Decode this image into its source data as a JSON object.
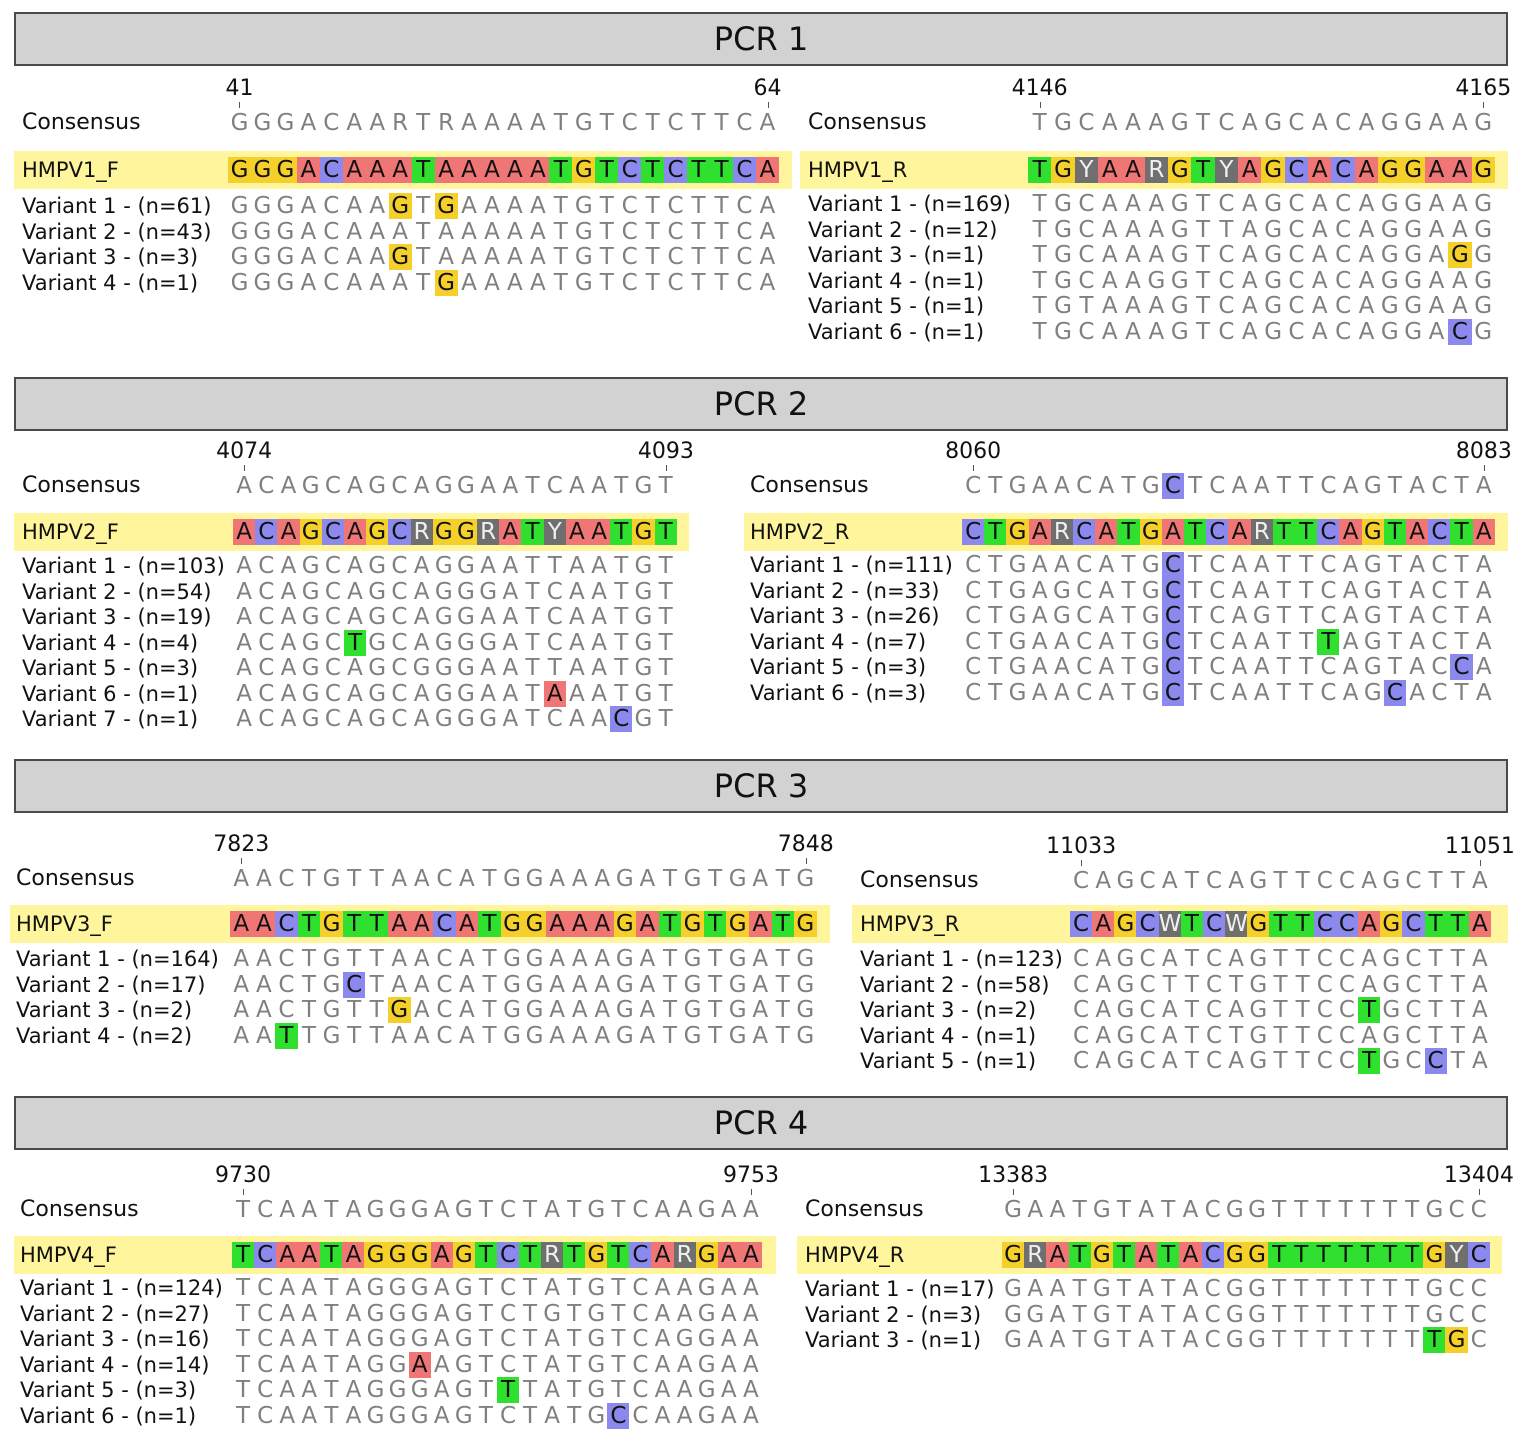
{
  "colors": {
    "A": "#f07575",
    "C": "#8b88ee",
    "G": "#f6d02a",
    "T": "#2fe02f",
    "ambiguous": "#6f6f6f",
    "primer_band": "#fff59d",
    "header_bg": "#d2d2d2"
  },
  "pcrs": [
    {
      "title": "PCR 1",
      "blocks": [
        {
          "start": "41",
          "end": "64",
          "consensus_label": "Consensus",
          "consensus": "GGGACAARTRAAAATGTCTCTTCA",
          "consensus_hl": [],
          "primer_name": "HMPV1_F",
          "primer": "GGGACAAATAAAAATGTCTCTTCA",
          "variants": [
            {
              "label": "Variant 1 - (n=61)",
              "seq": "GGGACAAGTGAAAATGTCTCTTCA",
              "hl": [
                7,
                9
              ]
            },
            {
              "label": "Variant 2 - (n=43)",
              "seq": "GGGACAAATAAAAATGTCTCTTCA",
              "hl": []
            },
            {
              "label": "Variant 3 - (n=3)",
              "seq": "GGGACAAGTAAAAATGTCTCTTCA",
              "hl": [
                7
              ]
            },
            {
              "label": "Variant 4 - (n=1)",
              "seq": "GGGACAAATGAAAATGTCTCTTCA",
              "hl": [
                9
              ]
            }
          ]
        },
        {
          "start": "4146",
          "end": "4165",
          "consensus_label": "Consensus",
          "consensus": "TGCAAAGTCAGCACAGGAAG",
          "consensus_hl": [],
          "primer_name": "HMPV1_R",
          "primer": "TGYAARGTYAGCACAGGAAG",
          "variants": [
            {
              "label": "Variant 1 - (n=169)",
              "seq": "TGCAAAGTCAGCACAGGAAG",
              "hl": []
            },
            {
              "label": "Variant 2 - (n=12)",
              "seq": "TGCAAAGTTAGCACAGGAAG",
              "hl": []
            },
            {
              "label": "Variant 3 - (n=1)",
              "seq": "TGCAAAGTCAGCACAGGAGG",
              "hl": [
                18
              ]
            },
            {
              "label": "Variant 4 - (n=1)",
              "seq": "TGCAAGGTCAGCACAGGAAG",
              "hl": []
            },
            {
              "label": "Variant 5 - (n=1)",
              "seq": "TGTAAAGTCAGCACAGGAAG",
              "hl": []
            },
            {
              "label": "Variant 6 - (n=1)",
              "seq": "TGCAAAGTCAGCACAGGACG",
              "hl": [
                18
              ]
            }
          ]
        }
      ]
    },
    {
      "title": "PCR 2",
      "blocks": [
        {
          "start": "4074",
          "end": "4093",
          "consensus_label": "Consensus",
          "consensus": "ACAGCAGCAGGAATCAATGT",
          "consensus_hl": [],
          "primer_name": "HMPV2_F",
          "primer": "ACAGCAGCRGGRATYAATGT",
          "variants": [
            {
              "label": "Variant 1 - (n=103)",
              "seq": "ACAGCAGCAGGAATTAATGT",
              "hl": []
            },
            {
              "label": "Variant 2 - (n=54)",
              "seq": "ACAGCAGCAGGGATCAATGT",
              "hl": []
            },
            {
              "label": "Variant 3 - (n=19)",
              "seq": "ACAGCAGCAGGAATCAATGT",
              "hl": []
            },
            {
              "label": "Variant 4 - (n=4)",
              "seq": "ACAGCTGCAGGGATCAATGT",
              "hl": [
                5
              ]
            },
            {
              "label": "Variant 5 - (n=3)",
              "seq": "ACAGCAGCGGGAATTAATGT",
              "hl": []
            },
            {
              "label": "Variant 6 - (n=1)",
              "seq": "ACAGCAGCAGGAATAAATGT",
              "hl": [
                14
              ]
            },
            {
              "label": "Variant 7 - (n=1)",
              "seq": "ACAGCAGCAGGGATCAACGT",
              "hl": [
                17
              ]
            }
          ]
        },
        {
          "start": "8060",
          "end": "8083",
          "consensus_label": "Consensus",
          "consensus": "CTGAACATGCTCAATTCAGTACTA",
          "consensus_hl": [
            9
          ],
          "primer_name": "HMPV2_R",
          "primer": "CTGARCATGATCARTTCAGTACTA",
          "variants": [
            {
              "label": "Variant 1 - (n=111)",
              "seq": "CTGAACATGCTCAATTCAGTACTA",
              "hl": [
                9
              ]
            },
            {
              "label": "Variant 2 - (n=33)",
              "seq": "CTGAGCATGCTCAATTCAGTACTA",
              "hl": [
                9
              ]
            },
            {
              "label": "Variant 3 - (n=26)",
              "seq": "CTGAGCATGCTCAGTTCAGTACTA",
              "hl": [
                9
              ]
            },
            {
              "label": "Variant 4 - (n=7)",
              "seq": "CTGAACATGCTCAATTTAGTACTA",
              "hl": [
                9,
                16
              ]
            },
            {
              "label": "Variant 5 - (n=3)",
              "seq": "CTGAACATGCTCAATTCAGTACCA",
              "hl": [
                9,
                22
              ]
            },
            {
              "label": "Variant 6 - (n=3)",
              "seq": "CTGAACATGCTCAATTCAGCACTA",
              "hl": [
                9,
                19
              ]
            }
          ]
        }
      ]
    },
    {
      "title": "PCR 3",
      "blocks": [
        {
          "start": "7823",
          "end": "7848",
          "consensus_label": "Consensus",
          "consensus": "AACTGTTAACATGGAAAGATGTGATG",
          "consensus_hl": [],
          "primer_name": "HMPV3_F",
          "primer": "AACTGTTAACATGGAAAGATGTGATG",
          "variants": [
            {
              "label": "Variant 1 - (n=164)",
              "seq": "AACTGTTAACATGGAAAGATGTGATG",
              "hl": []
            },
            {
              "label": "Variant 2 - (n=17)",
              "seq": "AACTGCTAACATGGAAAGATGTGATG",
              "hl": [
                5
              ]
            },
            {
              "label": "Variant 3 - (n=2)",
              "seq": "AACTGTTGACATGGAAAGATGTGATG",
              "hl": [
                7
              ]
            },
            {
              "label": "Variant 4 - (n=2)",
              "seq": "AATTGTTAACATGGAAAGATGTGATG",
              "hl": [
                2
              ]
            }
          ]
        },
        {
          "start": "11033",
          "end": "11051",
          "consensus_label": "Consensus",
          "consensus": "CAGCATCAGTTCCAGCTTA",
          "consensus_hl": [],
          "primer_name": "HMPV3_R",
          "primer": "CAGCWTCWGTTCCAGCTTA",
          "variants": [
            {
              "label": "Variant 1 - (n=123)",
              "seq": "CAGCATCAGTTCCAGCTTA",
              "hl": []
            },
            {
              "label": "Variant 2 - (n=58)",
              "seq": "CAGCTTCTGTTCCAGCTTA",
              "hl": []
            },
            {
              "label": "Variant 3 - (n=2)",
              "seq": "CAGCATCAGTTCCTGCTTA",
              "hl": [
                13
              ]
            },
            {
              "label": "Variant 4 - (n=1)",
              "seq": "CAGCATCTGTTCCAGCTTA",
              "hl": []
            },
            {
              "label": "Variant 5 - (n=1)",
              "seq": "CAGCATCAGTTCCTGCCTA",
              "hl": [
                13,
                16
              ]
            }
          ]
        }
      ]
    },
    {
      "title": "PCR 4",
      "blocks": [
        {
          "start": "9730",
          "end": "9753",
          "consensus_label": "Consensus",
          "consensus": "TCAATAGGGAGTCTATGTCAAGAA",
          "consensus_hl": [],
          "primer_name": "HMPV4_F",
          "primer": "TCAATAGGGAGTCTRTGTCARGAA",
          "variants": [
            {
              "label": "Variant 1 - (n=124)",
              "seq": "TCAATAGGGAGTCTATGTCAAGAA",
              "hl": []
            },
            {
              "label": "Variant 2 - (n=27)",
              "seq": "TCAATAGGGAGTCTGTGTCAAGAA",
              "hl": []
            },
            {
              "label": "Variant 3 - (n=16)",
              "seq": "TCAATAGGGAGTCTATGTCAGGAA",
              "hl": []
            },
            {
              "label": "Variant 4 - (n=14)",
              "seq": "TCAATAGGAAGTCTATGTCAAGAA",
              "hl": [
                8
              ]
            },
            {
              "label": "Variant 5 - (n=3)",
              "seq": "TCAATAGGGAGTTTATGTCAAGAA",
              "hl": [
                12
              ]
            },
            {
              "label": "Variant 6 - (n=1)",
              "seq": "TCAATAGGGAGTCTATGCCAAGAA",
              "hl": [
                17
              ]
            }
          ]
        },
        {
          "start": "13383",
          "end": "13404",
          "consensus_label": "Consensus",
          "consensus": "GAATGTATACGGTTTTTTTGCC",
          "consensus_hl": [],
          "primer_name": "HMPV4_R",
          "primer": "GRATGTATACGGTTTTTTTGYC",
          "variants": [
            {
              "label": "Variant 1 - (n=17)",
              "seq": "GAATGTATACGGTTTTTTTGCC",
              "hl": []
            },
            {
              "label": "Variant 2 - (n=3)",
              "seq": "GGATGTATACGGTTTTTTTGCC",
              "hl": []
            },
            {
              "label": "Variant 3 - (n=1)",
              "seq": "GAATGTATACGGTTTTTTTTGC",
              "hl": [
                19,
                20
              ]
            }
          ]
        }
      ]
    }
  ]
}
